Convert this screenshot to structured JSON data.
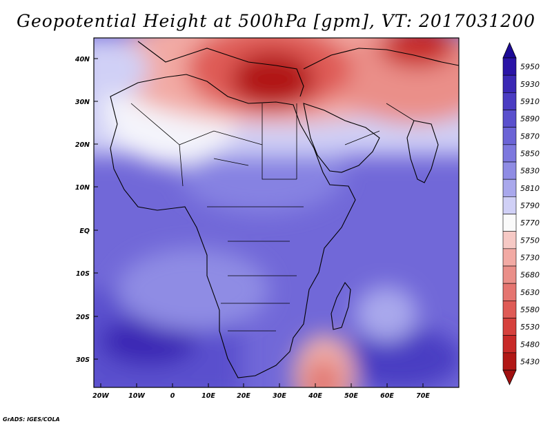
{
  "title": "Geopotential Height at 500hPa [gpm], VT: 2017031200",
  "credit": "GrADS: IGES/COLA",
  "map": {
    "lat_labels": [
      "40N",
      "30N",
      "20N",
      "10N",
      "EQ",
      "10S",
      "20S",
      "30S"
    ],
    "lon_labels": [
      "20W",
      "10W",
      "0",
      "10E",
      "20E",
      "30E",
      "40E",
      "50E",
      "60E",
      "70E"
    ],
    "lon_range": [
      -22,
      80
    ],
    "lat_range": [
      -37,
      45
    ]
  },
  "colorbar": {
    "levels": [
      5950,
      5930,
      5910,
      5890,
      5870,
      5850,
      5830,
      5810,
      5790,
      5770,
      5750,
      5730,
      5680,
      5630,
      5580,
      5530,
      5480,
      5430
    ],
    "colors": [
      "#2a14a6",
      "#3a28b4",
      "#4a3cc2",
      "#5a50cd",
      "#6b64d6",
      "#7d78de",
      "#8f8ce4",
      "#a9a8ec",
      "#d0d0f6",
      "#fafafa",
      "#f6c9c5",
      "#f2aaa4",
      "#ea8f89",
      "#e57570",
      "#df5b56",
      "#d6413d",
      "#c82a28",
      "#b11816"
    ],
    "top_color": "#1c0a96",
    "bottom_color": "#a01010"
  }
}
